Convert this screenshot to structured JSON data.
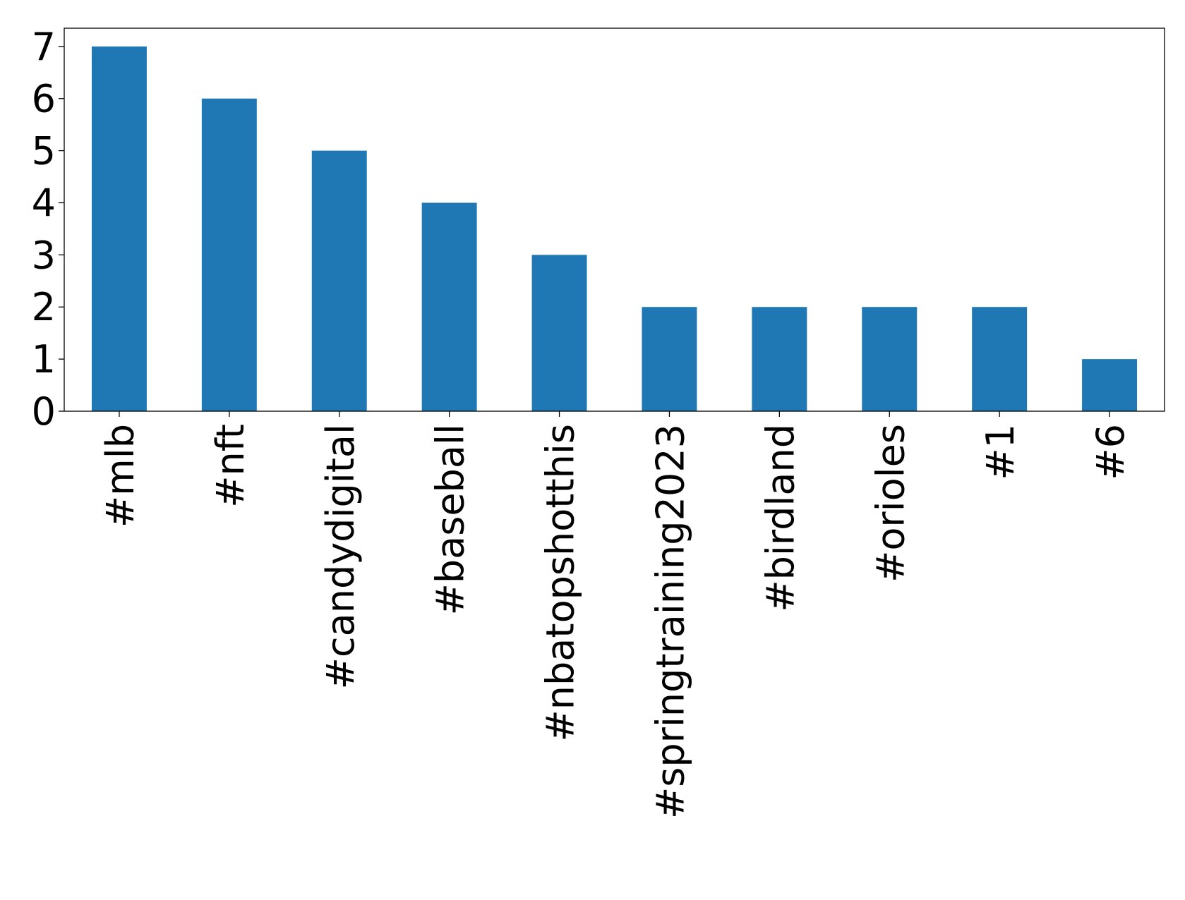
{
  "chart_data": {
    "type": "bar",
    "title": "",
    "xlabel": "",
    "ylabel": "",
    "categories": [
      "#mlb",
      "#nft",
      "#candydigital",
      "#baseball",
      "#nbatopshotthis",
      "#springtraining2023",
      "#birdland",
      "#orioles",
      "#1",
      "#6"
    ],
    "values": [
      7,
      6,
      5,
      4,
      3,
      2,
      2,
      2,
      2,
      1
    ],
    "ylim": [
      0,
      7.35
    ],
    "yticks": [
      0,
      1,
      2,
      3,
      4,
      5,
      6,
      7
    ],
    "grid": false,
    "legend": "none",
    "bar_color": "#1f77b4"
  }
}
